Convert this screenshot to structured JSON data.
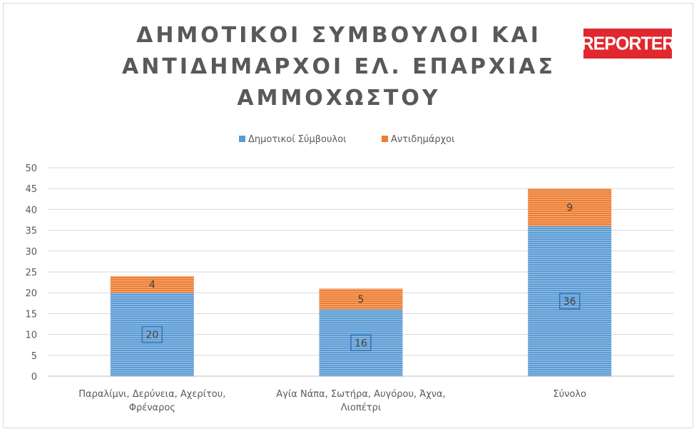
{
  "logo": {
    "text": "REPORTER"
  },
  "chart_data": {
    "type": "bar",
    "stacked": true,
    "title": "ΔΗΜΟΤΙΚΟΙ ΣΥΜΒΟΥΛΟΙ ΚΑΙ ΑΝΤΙΔΗΜΑΡΧΟΙ ΕΛ. ΕΠΑΡΧΙΑΣ ΑΜΜΟΧΩΣΤΟΥ",
    "categories": [
      [
        "Παραλίμνι, Δερύνεια, Αχερίτου,",
        "Φρέναρος"
      ],
      [
        "Αγία Νάπα, Σωτήρα, Αυγόρου, Άχνα,",
        "Λιοπέτρι"
      ],
      [
        "Σύνολο"
      ]
    ],
    "series": [
      {
        "name": "Δημοτικοί Σύμβουλοι",
        "values": [
          20,
          16,
          36
        ],
        "color": "#5b9bd5"
      },
      {
        "name": "Αντιδημάρχοι",
        "values": [
          4,
          5,
          9
        ],
        "color": "#ed7d31"
      }
    ],
    "ylim": [
      0,
      50
    ],
    "yticks": [
      0,
      5,
      10,
      15,
      20,
      25,
      30,
      35,
      40,
      45,
      50
    ],
    "grid": true,
    "legend_position": "top"
  }
}
